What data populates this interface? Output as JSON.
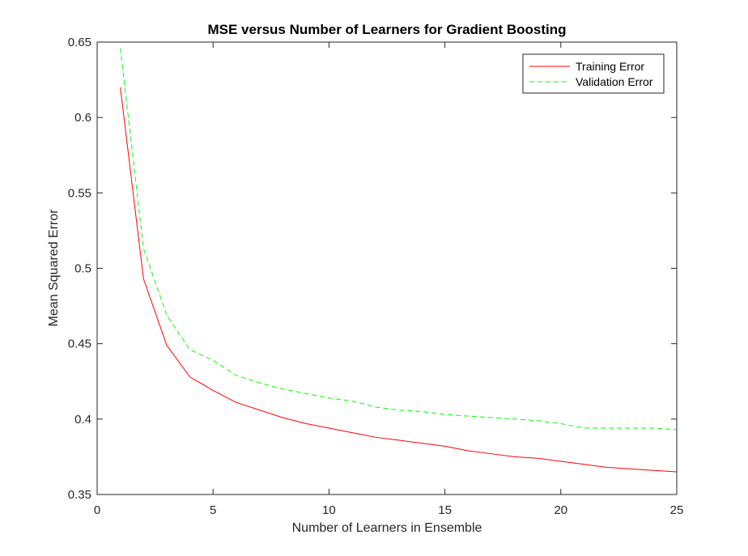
{
  "chart_data": {
    "type": "line",
    "title": "MSE versus Number of Learners for Gradient Boosting",
    "xlabel": "Number of Learners in Ensemble",
    "ylabel": "Mean Squared Error",
    "xlim": [
      0,
      25
    ],
    "ylim": [
      0.35,
      0.65
    ],
    "xticks": [
      "0",
      "5",
      "10",
      "15",
      "20",
      "25"
    ],
    "yticks": [
      "0.35",
      "0.4",
      "0.45",
      "0.5",
      "0.55",
      "0.6",
      "0.65"
    ],
    "grid": false,
    "legend_position": "top-right",
    "x": [
      1,
      2,
      3,
      4,
      5,
      6,
      7,
      8,
      9,
      10,
      11,
      12,
      13,
      14,
      15,
      16,
      17,
      18,
      19,
      20,
      21,
      22,
      23,
      24,
      25
    ],
    "series": [
      {
        "name": "Training Error",
        "color": "#ff0000",
        "line_style": "solid",
        "values": [
          0.62,
          0.493,
          0.449,
          0.428,
          0.419,
          0.411,
          0.406,
          0.401,
          0.397,
          0.394,
          0.391,
          0.388,
          0.386,
          0.384,
          0.382,
          0.379,
          0.377,
          0.375,
          0.374,
          0.372,
          0.37,
          0.368,
          0.367,
          0.366,
          0.365
        ]
      },
      {
        "name": "Validation Error",
        "color": "#00ff00",
        "line_style": "dashed",
        "values": [
          0.646,
          0.513,
          0.469,
          0.446,
          0.439,
          0.429,
          0.424,
          0.42,
          0.417,
          0.414,
          0.412,
          0.408,
          0.406,
          0.405,
          0.403,
          0.402,
          0.401,
          0.4,
          0.399,
          0.397,
          0.394,
          0.394,
          0.394,
          0.394,
          0.393
        ]
      }
    ]
  }
}
